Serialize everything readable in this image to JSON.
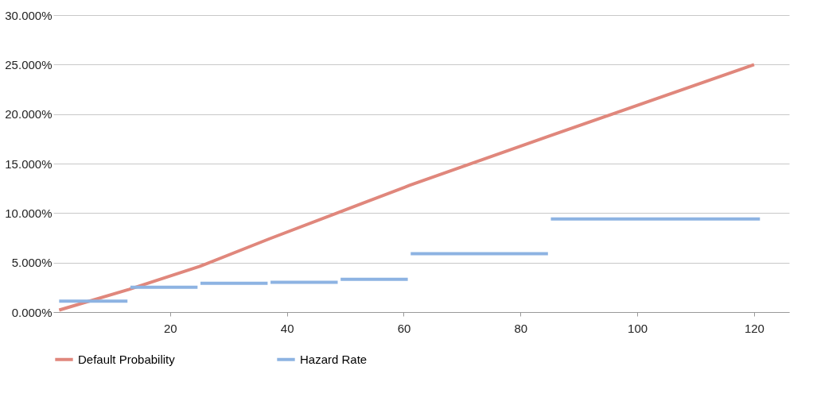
{
  "chart_data": {
    "type": "line",
    "xlim": [
      0,
      126
    ],
    "xticks": [
      20,
      40,
      60,
      80,
      100,
      120
    ],
    "ylim": [
      0,
      30
    ],
    "yticks": [
      {
        "value": 0,
        "label": "0.000%"
      },
      {
        "value": 5,
        "label": "5.000%"
      },
      {
        "value": 10,
        "label": "10.000%"
      },
      {
        "value": 15,
        "label": "15.000%"
      },
      {
        "value": 20,
        "label": "20.000%"
      },
      {
        "value": 25,
        "label": "25.000%"
      },
      {
        "value": 30,
        "label": "30.000%"
      }
    ],
    "grid": "y",
    "legend": "bottom",
    "marker": "none",
    "line_style": "solid",
    "series": [
      {
        "name": "Default Probability",
        "color": "#e0877c",
        "x": [
          1,
          13,
          25,
          37,
          49,
          61,
          85,
          120
        ],
        "values": [
          0.2,
          2.3,
          4.6,
          7.4,
          10.1,
          12.8,
          17.8,
          25.0
        ]
      },
      {
        "name": "Hazard Rate",
        "color": "#8db3e2",
        "x": [
          1,
          12.7,
          12.8,
          13.2,
          24.7,
          24.8,
          25.2,
          36.7,
          36.8,
          37.2,
          48.7,
          48.8,
          49.2,
          60.7,
          60.8,
          61.2,
          84.7,
          84.8,
          85.2,
          121
        ],
        "values": [
          1.1,
          1.1,
          null,
          2.5,
          2.5,
          null,
          2.9,
          2.9,
          null,
          3.0,
          3.0,
          null,
          3.3,
          3.3,
          null,
          5.9,
          5.9,
          null,
          9.4,
          9.4
        ]
      }
    ]
  }
}
